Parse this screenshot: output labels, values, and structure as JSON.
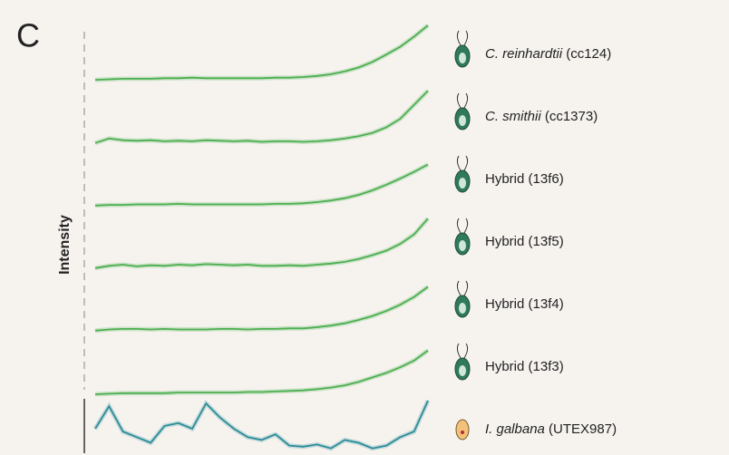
{
  "chart_data": {
    "type": "line",
    "panel_label": "C",
    "y_label": "Intensity",
    "ylim": [
      0,
      1
    ],
    "series": [
      {
        "name": "C. reinhardtii (cc124)",
        "italic": true,
        "color": "#4caf50",
        "values": [
          0.03,
          0.04,
          0.05,
          0.05,
          0.05,
          0.06,
          0.06,
          0.07,
          0.06,
          0.06,
          0.06,
          0.06,
          0.06,
          0.07,
          0.07,
          0.08,
          0.1,
          0.13,
          0.18,
          0.25,
          0.35,
          0.48,
          0.62,
          0.8,
          1.0
        ]
      },
      {
        "name": "C. smithii (cc1373)",
        "italic": true,
        "color": "#4caf50",
        "values": [
          0.02,
          0.1,
          0.07,
          0.06,
          0.07,
          0.05,
          0.06,
          0.05,
          0.07,
          0.06,
          0.05,
          0.06,
          0.04,
          0.05,
          0.05,
          0.04,
          0.05,
          0.07,
          0.1,
          0.14,
          0.2,
          0.3,
          0.45,
          0.7,
          0.95
        ]
      },
      {
        "name": "Hybrid (13f6)",
        "italic": false,
        "color": "#4caf50",
        "values": [
          0.02,
          0.03,
          0.03,
          0.04,
          0.04,
          0.04,
          0.05,
          0.04,
          0.04,
          0.04,
          0.04,
          0.04,
          0.04,
          0.05,
          0.05,
          0.06,
          0.08,
          0.11,
          0.15,
          0.21,
          0.29,
          0.39,
          0.5,
          0.62,
          0.75
        ]
      },
      {
        "name": "Hybrid (13f5)",
        "italic": false,
        "color": "#4caf50",
        "values": [
          0.02,
          0.06,
          0.08,
          0.05,
          0.07,
          0.06,
          0.08,
          0.07,
          0.09,
          0.08,
          0.07,
          0.08,
          0.06,
          0.06,
          0.07,
          0.06,
          0.08,
          0.1,
          0.13,
          0.18,
          0.25,
          0.33,
          0.45,
          0.62,
          0.9
        ]
      },
      {
        "name": "Hybrid (13f4)",
        "italic": false,
        "color": "#4caf50",
        "values": [
          0.02,
          0.04,
          0.05,
          0.05,
          0.04,
          0.05,
          0.04,
          0.04,
          0.04,
          0.05,
          0.05,
          0.04,
          0.05,
          0.05,
          0.06,
          0.06,
          0.08,
          0.11,
          0.15,
          0.21,
          0.28,
          0.37,
          0.48,
          0.62,
          0.8
        ]
      },
      {
        "name": "Hybrid (13f3)",
        "italic": false,
        "color": "#4caf50",
        "values": [
          0.0,
          0.01,
          0.02,
          0.02,
          0.02,
          0.02,
          0.03,
          0.03,
          0.03,
          0.03,
          0.03,
          0.04,
          0.04,
          0.05,
          0.06,
          0.07,
          0.09,
          0.12,
          0.16,
          0.22,
          0.3,
          0.38,
          0.48,
          0.6,
          0.78
        ]
      },
      {
        "name": "I. galbana (UTEX987)",
        "italic": true,
        "color": "#2b8c99",
        "values": [
          0.5,
          0.9,
          0.45,
          0.35,
          0.25,
          0.55,
          0.6,
          0.5,
          0.95,
          0.7,
          0.5,
          0.35,
          0.3,
          0.4,
          0.2,
          0.18,
          0.22,
          0.15,
          0.3,
          0.25,
          0.15,
          0.2,
          0.35,
          0.45,
          1.0
        ]
      }
    ]
  }
}
